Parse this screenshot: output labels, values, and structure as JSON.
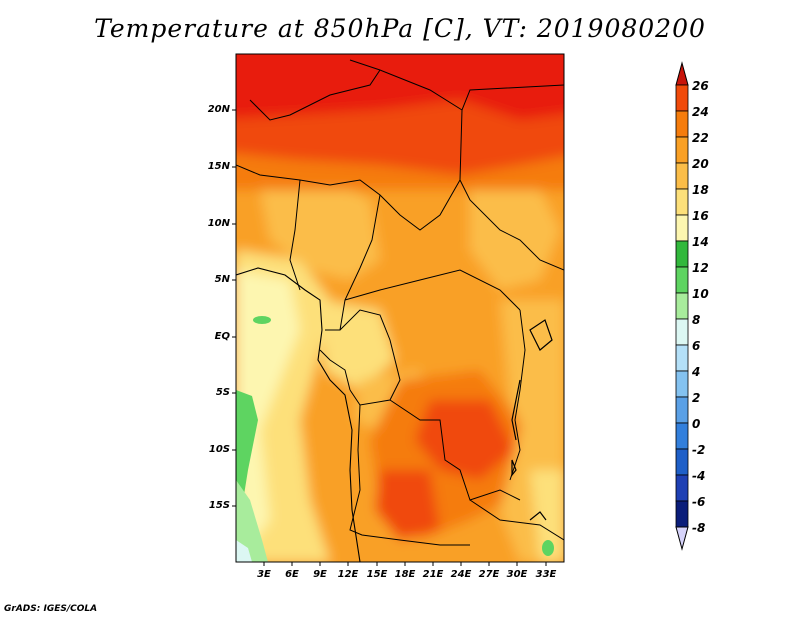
{
  "title": "Temperature at 850hPa [C], VT: 2019080200",
  "footer": "GrADS: IGES/COLA",
  "map": {
    "lat_labels": [
      "20N",
      "15N",
      "10N",
      "5N",
      "EQ",
      "5S",
      "10S",
      "15S"
    ],
    "lon_labels": [
      "3E",
      "6E",
      "9E",
      "12E",
      "15E",
      "18E",
      "21E",
      "24E",
      "27E",
      "30E",
      "33E"
    ]
  },
  "colorbar": {
    "labels": [
      "26",
      "24",
      "22",
      "20",
      "18",
      "16",
      "14",
      "12",
      "10",
      "8",
      "6",
      "4",
      "2",
      "0",
      "-2",
      "-4",
      "-6",
      "-8"
    ],
    "colors": [
      "#e81f08",
      "#f04a0a",
      "#f57c0c",
      "#f9a025",
      "#fbbd48",
      "#fde07a",
      "#fdf6b0",
      "#32b83c",
      "#5ed461",
      "#a8ec9c",
      "#dcf7f3",
      "#b4e0f8",
      "#84c2f0",
      "#5aa0e6",
      "#327fdc",
      "#1e5fc8",
      "#1e40b4",
      "#0a1d7a"
    ],
    "top_arrow_color": "#c8140a",
    "bottom_arrow_color": "#d6d3fa"
  }
}
